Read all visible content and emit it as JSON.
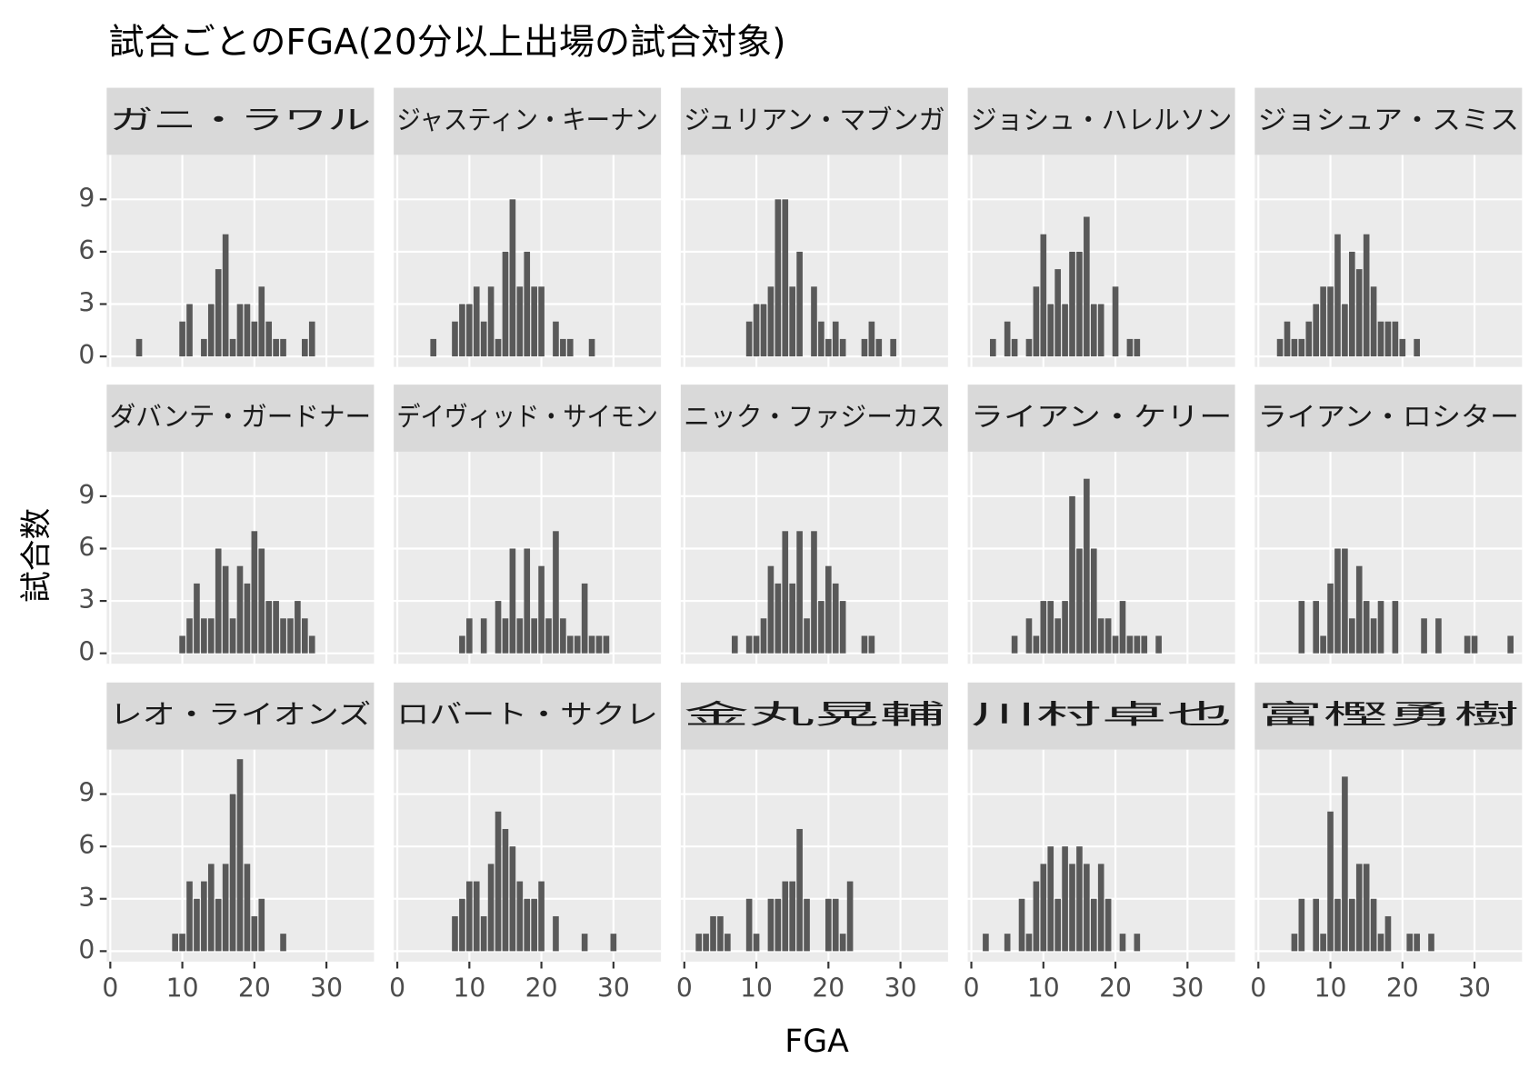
{
  "chart_data": {
    "type": "histogram",
    "title": "試合ごとのFGA(20分以上出場の試合対象)",
    "x_label": "FGA",
    "y_label": "試合数",
    "color": "#595959",
    "grid": true,
    "bins": [
      1.5,
      2.5,
      3.5,
      4.5,
      5.5,
      6.5,
      7.5,
      8.5,
      9.5,
      10.5,
      11.5,
      12.5,
      13.5,
      14.5,
      15.5,
      16.5,
      17.5,
      18.5,
      19.5,
      20.5,
      21.5,
      22.5,
      23.5,
      24.5,
      25.5,
      26.5,
      27.5,
      28.5,
      29.5,
      30.5,
      31.5,
      32.5,
      33.5,
      34.5,
      35.5
    ],
    "xlim": [
      -0.5,
      36.6
    ],
    "ylim": [
      -0.6,
      11.55
    ],
    "xticks": [
      0,
      10,
      20,
      30
    ],
    "yticks": [
      0,
      3,
      6,
      9
    ],
    "facets": [
      {
        "name": "ガニ・ラワル",
        "values": [
          0,
          0,
          1,
          0,
          0,
          0,
          0,
          0,
          2,
          3,
          0,
          1,
          3,
          5,
          7,
          1,
          3,
          3,
          2,
          4,
          2,
          1,
          1,
          0,
          0,
          1,
          2,
          0,
          0,
          0,
          0,
          0,
          0,
          0
        ]
      },
      {
        "name": "ジャスティン・キーナン",
        "values": [
          0,
          0,
          0,
          1,
          0,
          0,
          2,
          3,
          3,
          4,
          2,
          4,
          1,
          6,
          9,
          4,
          6,
          4,
          4,
          0,
          2,
          1,
          1,
          0,
          0,
          1,
          0,
          0,
          0,
          0,
          0,
          0,
          0,
          0
        ]
      },
      {
        "name": "ジュリアン・マブンガ",
        "values": [
          0,
          0,
          0,
          0,
          0,
          0,
          0,
          2,
          3,
          3,
          4,
          9,
          9,
          4,
          6,
          0,
          4,
          2,
          1,
          2,
          1,
          0,
          0,
          1,
          2,
          1,
          0,
          1,
          0,
          0,
          0,
          0,
          0,
          0
        ]
      },
      {
        "name": "ジョシュ・ハレルソン",
        "values": [
          0,
          1,
          0,
          2,
          1,
          0,
          1,
          4,
          7,
          3,
          5,
          3,
          6,
          6,
          8,
          3,
          3,
          0,
          4,
          0,
          1,
          1,
          0,
          0,
          0,
          0,
          0,
          0,
          0,
          0,
          0,
          0,
          0,
          0
        ]
      },
      {
        "name": "ジョシュア・スミス",
        "values": [
          0,
          1,
          2,
          1,
          1,
          2,
          3,
          4,
          4,
          7,
          3,
          6,
          5,
          7,
          4,
          2,
          2,
          2,
          1,
          0,
          1,
          0,
          0,
          0,
          0,
          0,
          0,
          0,
          0,
          0,
          0,
          0,
          0,
          0
        ]
      },
      {
        "name": "ダバンテ・ガードナー",
        "values": [
          0,
          0,
          0,
          0,
          0,
          0,
          0,
          0,
          1,
          2,
          4,
          2,
          2,
          6,
          5,
          2,
          5,
          4,
          7,
          6,
          3,
          3,
          2,
          2,
          3,
          2,
          1,
          0,
          0,
          0,
          0,
          0,
          0,
          0
        ]
      },
      {
        "name": "デイヴィッド・サイモン",
        "values": [
          0,
          0,
          0,
          0,
          0,
          0,
          0,
          1,
          2,
          0,
          2,
          0,
          3,
          2,
          6,
          2,
          6,
          2,
          5,
          2,
          7,
          2,
          1,
          1,
          4,
          1,
          1,
          1,
          0,
          0,
          0,
          0,
          0,
          0
        ]
      },
      {
        "name": "ニック・ファジーカス",
        "values": [
          0,
          0,
          0,
          0,
          0,
          1,
          0,
          1,
          1,
          2,
          5,
          4,
          7,
          4,
          7,
          2,
          7,
          3,
          5,
          4,
          3,
          0,
          0,
          1,
          1,
          0,
          0,
          0,
          0,
          0,
          0,
          0,
          0,
          0
        ]
      },
      {
        "name": "ライアン・ケリー",
        "values": [
          0,
          0,
          0,
          0,
          1,
          0,
          2,
          1,
          3,
          3,
          2,
          3,
          9,
          6,
          10,
          6,
          2,
          2,
          1,
          3,
          1,
          1,
          1,
          0,
          1,
          0,
          0,
          0,
          0,
          0,
          0,
          0,
          0,
          0
        ]
      },
      {
        "name": "ライアン・ロシター",
        "values": [
          0,
          0,
          0,
          0,
          3,
          0,
          3,
          1,
          4,
          6,
          6,
          2,
          5,
          3,
          2,
          3,
          0,
          3,
          0,
          0,
          0,
          2,
          0,
          2,
          0,
          0,
          0,
          1,
          1,
          0,
          0,
          0,
          0,
          1
        ]
      },
      {
        "name": "レオ・ライオンズ",
        "values": [
          0,
          0,
          0,
          0,
          0,
          0,
          0,
          1,
          1,
          4,
          3,
          4,
          5,
          3,
          5,
          9,
          11,
          5,
          2,
          3,
          0,
          0,
          1,
          0,
          0,
          0,
          0,
          0,
          0,
          0,
          0,
          0,
          0,
          0
        ]
      },
      {
        "name": "ロバート・サクレ",
        "values": [
          0,
          0,
          0,
          0,
          0,
          0,
          2,
          3,
          4,
          4,
          2,
          5,
          8,
          7,
          6,
          4,
          3,
          3,
          4,
          0,
          2,
          0,
          0,
          0,
          1,
          0,
          0,
          0,
          1,
          0,
          0,
          0,
          0,
          0
        ]
      },
      {
        "name": "金丸晃輔",
        "values": [
          1,
          1,
          2,
          2,
          1,
          0,
          0,
          3,
          1,
          0,
          3,
          3,
          4,
          4,
          7,
          3,
          0,
          0,
          3,
          3,
          1,
          4,
          0,
          0,
          0,
          0,
          0,
          0,
          0,
          0,
          0,
          0,
          0,
          0
        ]
      },
      {
        "name": "川村卓也",
        "values": [
          1,
          0,
          0,
          1,
          0,
          3,
          1,
          4,
          5,
          6,
          3,
          6,
          5,
          6,
          5,
          3,
          5,
          3,
          0,
          1,
          0,
          1,
          0,
          0,
          0,
          0,
          0,
          0,
          0,
          0,
          0,
          0,
          0,
          0
        ]
      },
      {
        "name": "富樫勇樹",
        "values": [
          0,
          0,
          0,
          1,
          3,
          0,
          3,
          1,
          8,
          3,
          10,
          3,
          5,
          5,
          3,
          1,
          2,
          0,
          0,
          1,
          1,
          0,
          1,
          0,
          0,
          0,
          0,
          0,
          0,
          0,
          0,
          0,
          0,
          0
        ]
      }
    ]
  }
}
